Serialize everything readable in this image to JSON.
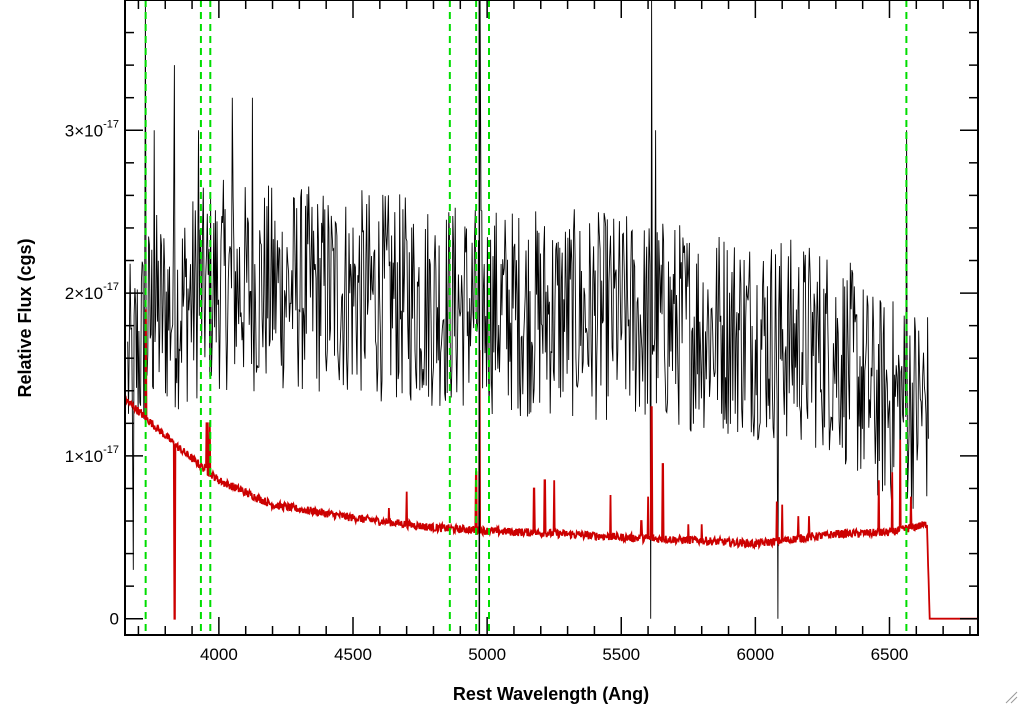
{
  "chart_data": {
    "type": "line",
    "title": "",
    "xlabel": "Rest Wavelength (Ang)",
    "ylabel": "Relative Flux (cgs)",
    "xlim": [
      3650,
      6830
    ],
    "ylim": [
      -1e-18,
      3.8e-17
    ],
    "x_ticks": [
      4000,
      4500,
      5000,
      5500,
      6000,
      6500
    ],
    "y_ticks": [
      {
        "value": 0,
        "mantissa": "0",
        "exponent": ""
      },
      {
        "value": 1e-17,
        "mantissa": "1×10",
        "exponent": "-17"
      },
      {
        "value": 2e-17,
        "mantissa": "2×10",
        "exponent": "-17"
      },
      {
        "value": 3e-17,
        "mantissa": "3×10",
        "exponent": "-17"
      }
    ],
    "grid": false,
    "series": [
      {
        "color": "#000000",
        "x_start": 3660,
        "x_end": 6645,
        "x_step": 3,
        "continuum": {
          "x": [
            3660,
            3750,
            4000,
            4500,
            5000,
            5500,
            6000,
            6300,
            6450,
            6645
          ],
          "y": [
            1.5e-17,
            1.85e-17,
            2.05e-17,
            2e-17,
            1.9e-17,
            1.85e-17,
            1.75e-17,
            1.65e-17,
            1.35e-17,
            1.3e-17
          ]
        },
        "noise_amplitude": 6.5e-18,
        "spikes": [
          {
            "x": 3727,
            "y": 3.8e-17
          },
          {
            "x": 3760,
            "y": 3e-17
          },
          {
            "x": 3835,
            "y": 3.4e-17
          },
          {
            "x": 3925,
            "y": 3e-17
          },
          {
            "x": 4050,
            "y": 3.2e-17
          },
          {
            "x": 4125,
            "y": 3.2e-17
          },
          {
            "x": 4975,
            "y": 3.8e-17
          },
          {
            "x": 5612,
            "y": 3.8e-17
          },
          {
            "x": 5628,
            "y": 3e-17
          },
          {
            "x": 6565,
            "y": 3e-17
          },
          {
            "x": 6085,
            "y": 0
          },
          {
            "x": 5610,
            "y": 0
          },
          {
            "x": 3680,
            "y": 3e-18
          }
        ]
      },
      {
        "color": "#cc0000",
        "continuum": {
          "x": [
            3650,
            3750,
            3850,
            4000,
            4200,
            4500,
            4800,
            5000,
            5300,
            5500,
            5800,
            6000,
            6300,
            6500,
            6640,
            6650,
            6830
          ],
          "y": [
            1.35e-17,
            1.2e-17,
            1.05e-17,
            8.5e-18,
            7e-18,
            6.2e-18,
            5.6e-18,
            5.4e-18,
            5.2e-18,
            5e-18,
            4.8e-18,
            4.6e-18,
            5.2e-18,
            5.3e-18,
            5.8e-18,
            0,
            0
          ]
        },
        "noise_amplitude": 2.5e-19,
        "lines": [
          {
            "x": 3728,
            "peak": 1.9e-17
          },
          {
            "x": 3835,
            "peak": 0
          },
          {
            "x": 3955,
            "peak": 1.2e-17
          },
          {
            "x": 3965,
            "peak": 1.2e-17
          },
          {
            "x": 4634,
            "peak": 6.8e-18
          },
          {
            "x": 4700,
            "peak": 7.8e-18
          },
          {
            "x": 4959,
            "peak": 9e-18
          },
          {
            "x": 4972,
            "peak": 1.65e-17
          },
          {
            "x": 5175,
            "peak": 8e-18
          },
          {
            "x": 5215,
            "peak": 8.5e-18
          },
          {
            "x": 5250,
            "peak": 8.5e-18
          },
          {
            "x": 5460,
            "peak": 7.6e-18
          },
          {
            "x": 5575,
            "peak": 6e-18
          },
          {
            "x": 5600,
            "peak": 7.5e-18
          },
          {
            "x": 5613,
            "peak": 1.3e-17
          },
          {
            "x": 5655,
            "peak": 9.5e-18
          },
          {
            "x": 5750,
            "peak": 5.8e-18
          },
          {
            "x": 5800,
            "peak": 5.8e-18
          },
          {
            "x": 6080,
            "peak": 7.2e-18
          },
          {
            "x": 6100,
            "peak": 7e-18
          },
          {
            "x": 6160,
            "peak": 6.3e-18
          },
          {
            "x": 6200,
            "peak": 6.3e-18
          },
          {
            "x": 6460,
            "peak": 8.5e-18
          },
          {
            "x": 6510,
            "peak": 9e-18
          },
          {
            "x": 6540,
            "peak": 1.1e-17
          },
          {
            "x": 6580,
            "peak": 7.5e-18
          }
        ]
      },
      {
        "color": "#00dd00",
        "style": "dashed",
        "vlines": [
          3727,
          3933,
          3968,
          4861,
          4959,
          5007,
          6563
        ]
      },
      {
        "color": "#000000",
        "style": "solid",
        "vlines": [
          4971
        ]
      }
    ]
  }
}
